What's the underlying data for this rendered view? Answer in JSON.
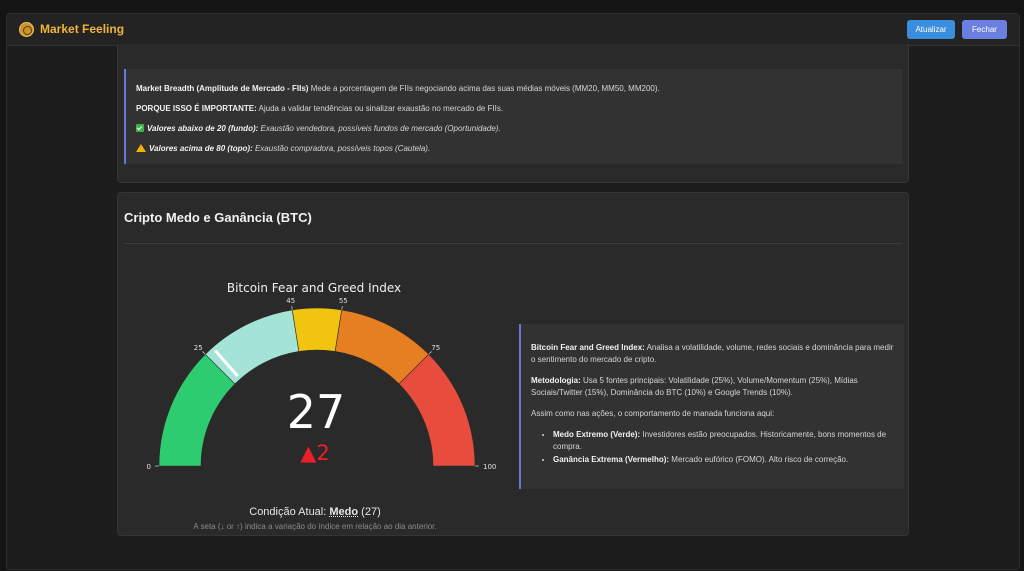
{
  "header": {
    "title": "Market Feeling",
    "refresh_label": "Atualizar",
    "close_label": "Fechar"
  },
  "breadth": {
    "title": "Market Breadth (Amplitude de Mercado - FIIs)",
    "description": "Mede a porcentagem de FIIs negociando acima das suas médias móveis (MM20, MM50, MM200).",
    "importance_label": "PORQUE ISSO É IMPORTANTE:",
    "importance_text": "Ajuda a validar tendências ou sinalizar exaustão no mercado de FIIs.",
    "low_label": "Valores abaixo de 20 (fundo):",
    "low_text": "Exaustão vendedora, possíveis fundos de mercado (Oportunidade).",
    "high_label": "Valores acima de 80 (topo):",
    "high_text": "Exaustão compradora, possíveis topos (Cautela)."
  },
  "btc": {
    "section_title": "Cripto Medo e Ganância (BTC)",
    "gauge_title": "Bitcoin Fear and Greed Index",
    "value": "27",
    "delta": "▲2",
    "condition_label": "Condição Atual:",
    "condition_value": "Medo",
    "condition_number": "(27)",
    "footnote": "A seta (↓ or ↑) indica a variação do índice em relação ao dia anterior.",
    "info_title": "Bitcoin Fear and Greed Index:",
    "info_text": "Analisa a volatilidade, volume, redes sociais e dominância para medir o sentimento do mercado de cripto.",
    "method_label": "Metodologia:",
    "method_text": "Usa 5 fontes principais: Volatilidade (25%), Volume/Momentum (25%), Mídias Sociais/Twitter (15%), Dominância do BTC (10%) e Google Trends (10%).",
    "herd_text": "Assim como nas ações, o comportamento de manada funciona aqui:",
    "bullets": [
      {
        "label": "Medo Extremo (Verde):",
        "text": "Investidores estão preocupados. Historicamente, bons momentos de compra."
      },
      {
        "label": "Ganância Extrema (Vermelho):",
        "text": "Mercado eufórico (FOMO). Alto risco de correção."
      }
    ]
  },
  "chart_data": {
    "type": "gauge",
    "title": "Bitcoin Fear and Greed Index",
    "range": [
      0,
      100
    ],
    "value": 27,
    "delta": 2,
    "bands": [
      {
        "from": 0,
        "to": 25,
        "color": "#2ecc71"
      },
      {
        "from": 25,
        "to": 45,
        "color": "#a3e4d7"
      },
      {
        "from": 45,
        "to": 55,
        "color": "#f1c40f"
      },
      {
        "from": 55,
        "to": 75,
        "color": "#e67e22"
      },
      {
        "from": 75,
        "to": 100,
        "color": "#e74c3c"
      }
    ],
    "ticks": [
      "0",
      "25",
      "45",
      "55",
      "75",
      "100"
    ]
  },
  "colors": {
    "accent": "#f0b43a",
    "refresh": "#3a8ee0",
    "close": "#6b7fe0",
    "delta_up": "#e8202a"
  }
}
